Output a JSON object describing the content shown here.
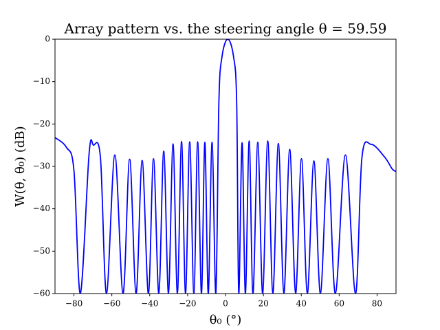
{
  "chart_data": {
    "type": "line",
    "title": "Array pattern vs. the steering angle θ = 59.59",
    "x_label": "θ₀ (°)",
    "y_label": "W(θ, θ₀) (dB)",
    "x": [
      -90,
      -84,
      -80,
      -76.6,
      -72,
      -69.7,
      -66,
      -62.8,
      -58.4,
      -54.1,
      -50.6,
      -47.2,
      -44.0,
      -40.7,
      -38.0,
      -35.2,
      -32.6,
      -30.1,
      -27.7,
      -25.4,
      -23.2,
      -21.1,
      -18.9,
      -16.7,
      -14.7,
      -12.7,
      -10.9,
      -9.1,
      -7.1,
      -5.1,
      -3.5,
      -1.8,
      1.2,
      4.2,
      5.9,
      7.0,
      8.75,
      10.5,
      12.5,
      14.5,
      17.05,
      19.6,
      22.3,
      25.0,
      27.9,
      30.8,
      33.9,
      37.0,
      40.1,
      43.2,
      46.65,
      50.1,
      54.05,
      58.0,
      63.3,
      68.6,
      72,
      76.9,
      84,
      88,
      90
    ],
    "series": [
      {
        "name": "W",
        "color": "#0000ff",
        "values": [
          -23.2,
          -25.5,
          -31,
          -60,
          -27,
          -25,
          -28,
          -60,
          -27.3,
          -60,
          -28.3,
          -60,
          -28.6,
          -60,
          -28.2,
          -60,
          -26.4,
          -60,
          -24.7,
          -60,
          -24.1,
          -60,
          -24.2,
          -60,
          -24.2,
          -60,
          -24.3,
          -60,
          -24.3,
          -60,
          -15,
          -4,
          0,
          -4,
          -15,
          -60,
          -24.4,
          -60,
          -24,
          -60,
          -24.3,
          -60,
          -24,
          -60,
          -24.6,
          -60,
          -26,
          -60,
          -28.2,
          -60,
          -28.7,
          -60,
          -28.2,
          -60,
          -27.3,
          -60,
          -28,
          -24.8,
          -27.8,
          -30.6,
          -31.2
        ]
      }
    ],
    "xlim": [
      -90,
      90
    ],
    "ylim": [
      -60,
      0
    ],
    "xticks": [
      {
        "value": -80,
        "label": "−80"
      },
      {
        "value": -60,
        "label": "−60"
      },
      {
        "value": -40,
        "label": "−40"
      },
      {
        "value": -20,
        "label": "−20"
      },
      0,
      20,
      40,
      60,
      80
    ],
    "yticks": [
      {
        "value": -60,
        "label": "−60"
      },
      {
        "value": -50,
        "label": "−50"
      },
      {
        "value": -40,
        "label": "−40"
      },
      {
        "value": -30,
        "label": "−30"
      },
      {
        "value": -20,
        "label": "−20"
      },
      {
        "value": -10,
        "label": "−10"
      },
      0
    ],
    "grid": false
  }
}
